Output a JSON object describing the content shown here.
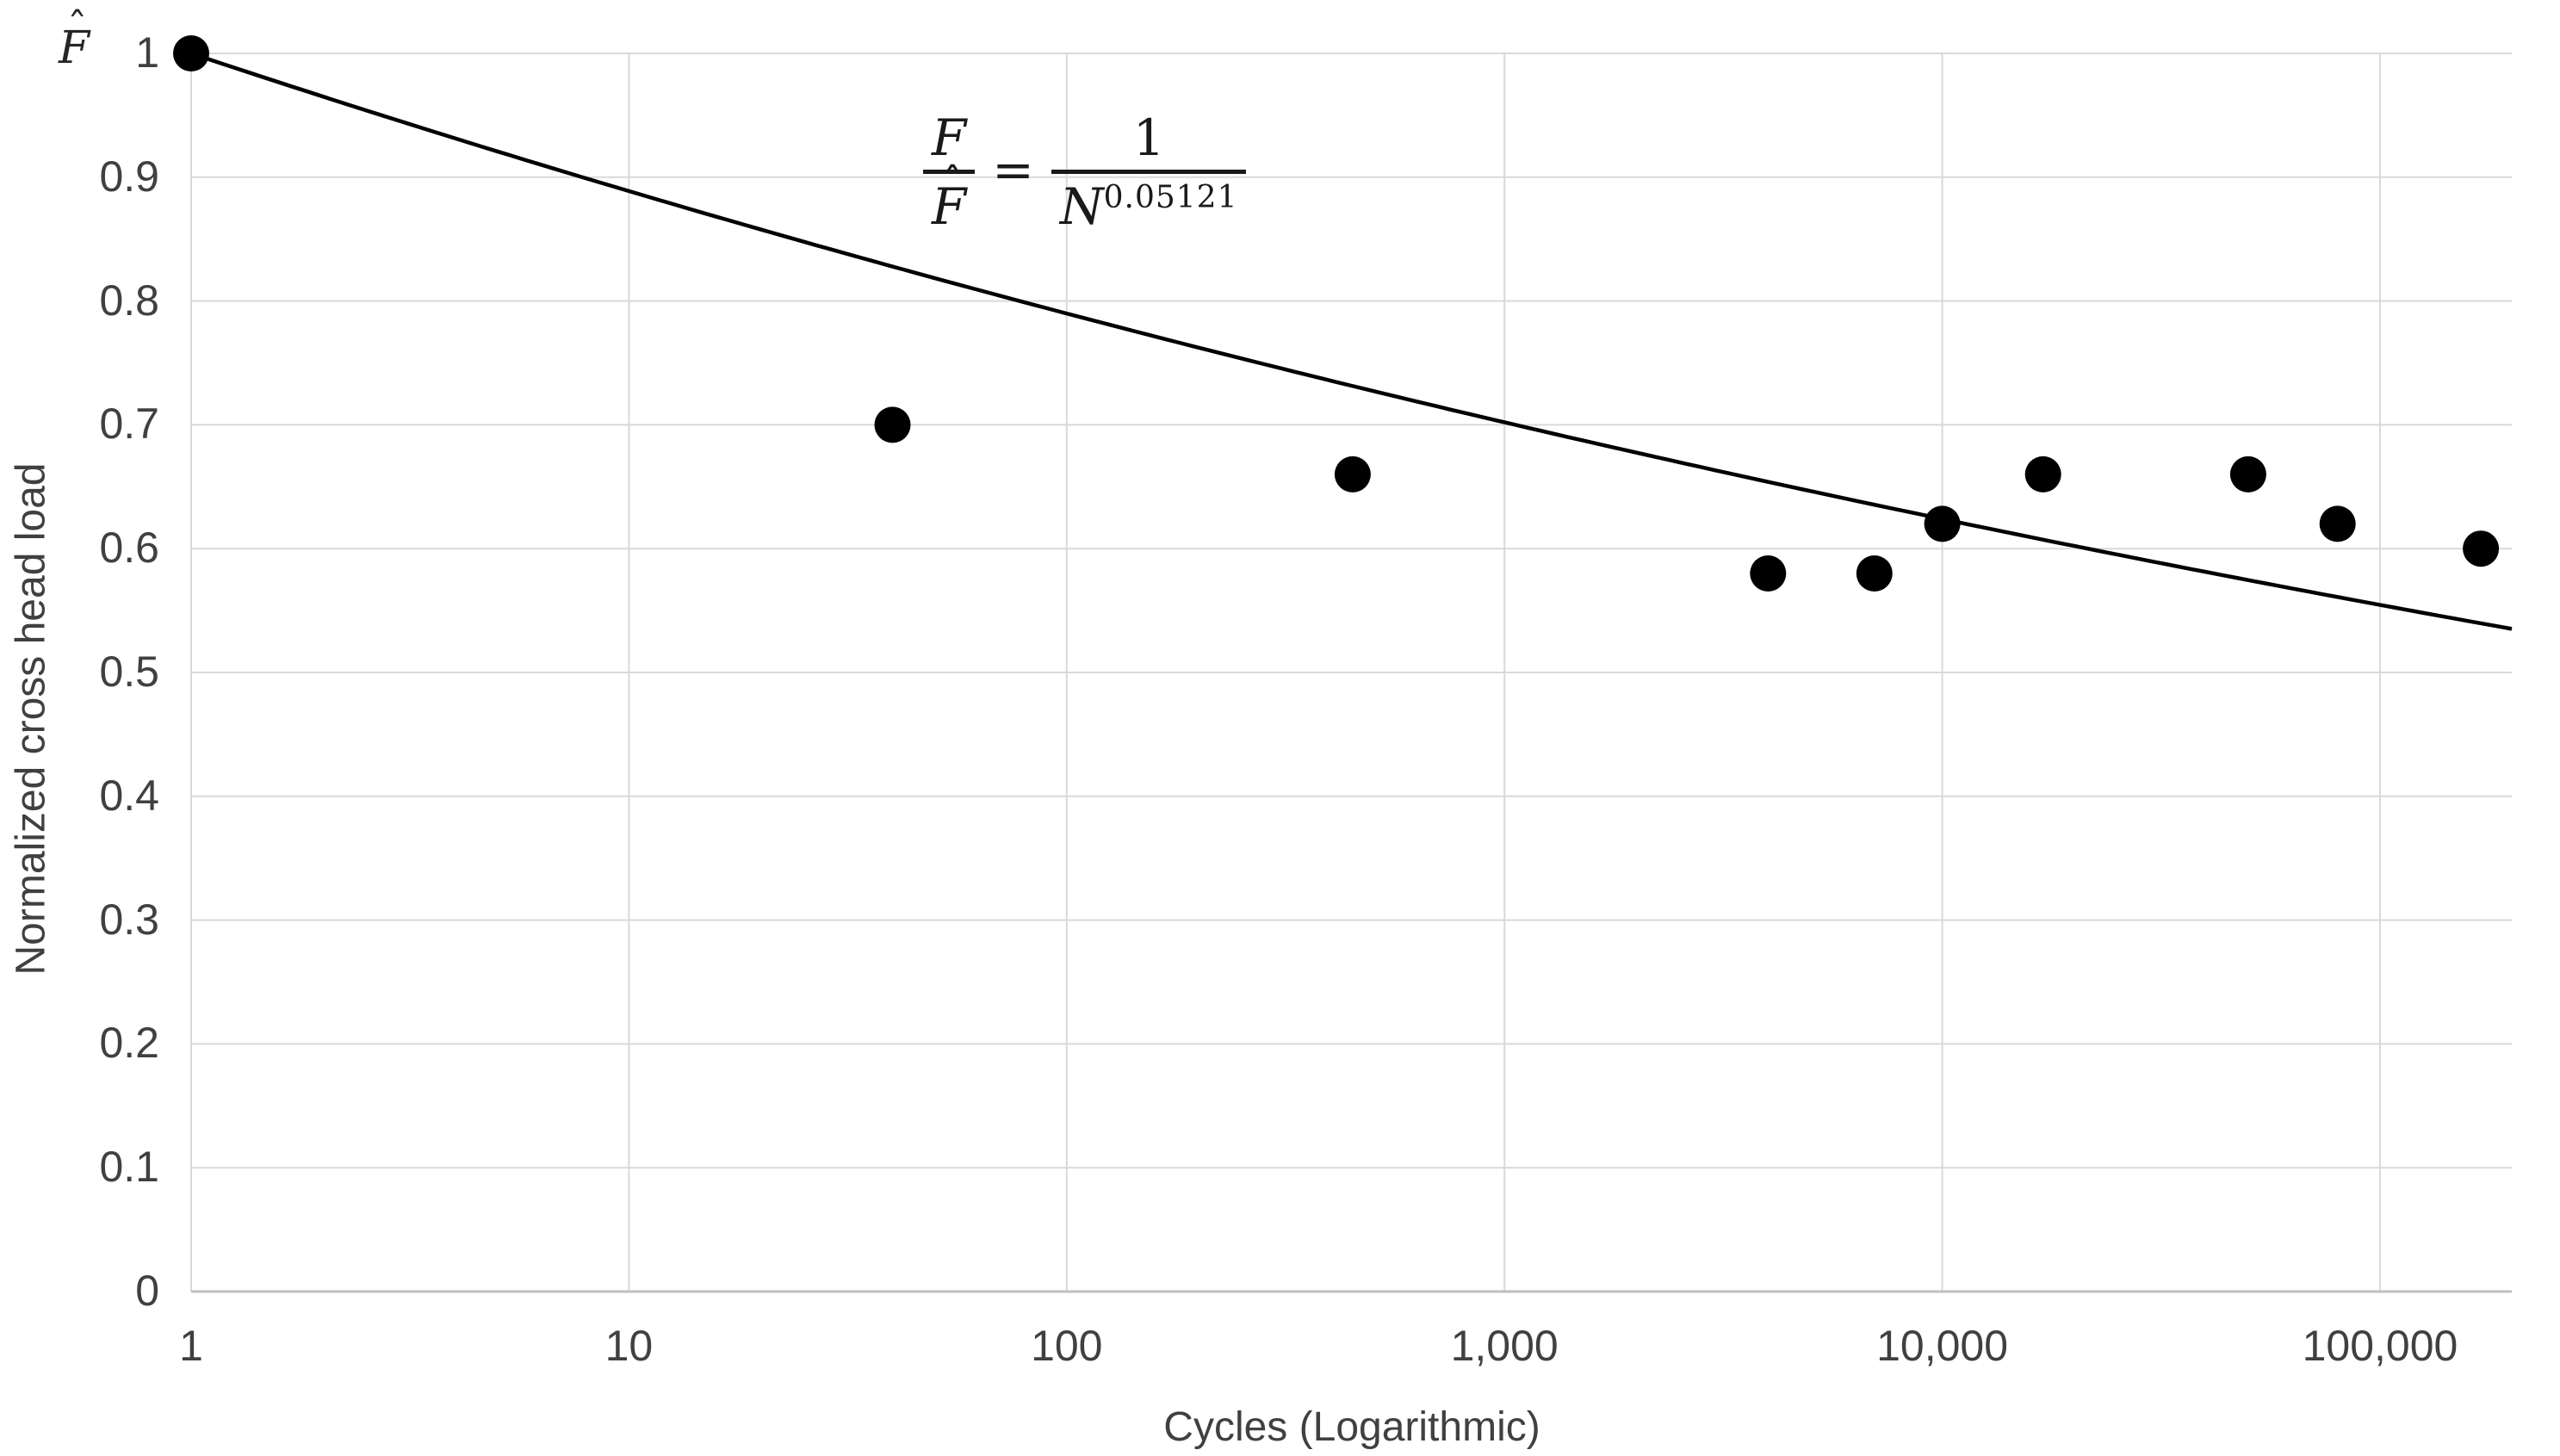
{
  "chart_data": {
    "type": "scatter",
    "title": "",
    "xlabel": "Cycles (Logarithmic)",
    "ylabel": "Normalized cross head load",
    "y_axis_symbol_base": "F",
    "y_axis_symbol_hat": "ˆ",
    "x_scale": "log",
    "y_scale": "linear",
    "x_range": [
      1,
      200000
    ],
    "y_range": [
      0,
      1
    ],
    "grid": true,
    "legend": null,
    "x_ticks": [
      {
        "value": 1,
        "label": "1"
      },
      {
        "value": 10,
        "label": "10"
      },
      {
        "value": 100,
        "label": "100"
      },
      {
        "value": 1000,
        "label": "1,000"
      },
      {
        "value": 10000,
        "label": "10,000"
      },
      {
        "value": 100000,
        "label": "100,000"
      }
    ],
    "y_ticks": [
      {
        "value": 1,
        "label": "1"
      },
      {
        "value": 0.9,
        "label": "0.9"
      },
      {
        "value": 0.8,
        "label": "0.8"
      },
      {
        "value": 0.7,
        "label": "0.7"
      },
      {
        "value": 0.6,
        "label": "0.6"
      },
      {
        "value": 0.5,
        "label": "0.5"
      },
      {
        "value": 0.4,
        "label": "0.4"
      },
      {
        "value": 0.3,
        "label": "0.3"
      },
      {
        "value": 0.2,
        "label": "0.2"
      },
      {
        "value": 0.1,
        "label": "0.1"
      },
      {
        "value": 0,
        "label": "0"
      }
    ],
    "points": [
      {
        "x": 1,
        "y": 1.0
      },
      {
        "x": 40,
        "y": 0.7
      },
      {
        "x": 450,
        "y": 0.66
      },
      {
        "x": 4000,
        "y": 0.58
      },
      {
        "x": 7000,
        "y": 0.58
      },
      {
        "x": 10000,
        "y": 0.62
      },
      {
        "x": 17000,
        "y": 0.66
      },
      {
        "x": 50000,
        "y": 0.66
      },
      {
        "x": 80000,
        "y": 0.62
      },
      {
        "x": 170000,
        "y": 0.6
      }
    ],
    "trendline": {
      "type": "power",
      "formula": "F/F̂ = 1/N^0.05121",
      "exponent": 0.05121
    },
    "equation": {
      "lhs_num": "F",
      "lhs_den_base": "F",
      "lhs_den_hat": "ˆ",
      "equals": "=",
      "rhs_num": "1",
      "rhs_den_base": "N",
      "rhs_exponent": "0.05121"
    },
    "marker": {
      "shape": "circle",
      "radius_px": 21
    },
    "colors": {
      "point": "#000000",
      "curve": "#000000",
      "gridline": "#d9d9d9",
      "axis_line": "#bfbfbf",
      "tick_text": "#404040",
      "title_text": "#404040",
      "equation_text": "#1a1a1a",
      "background": "#ffffff"
    }
  }
}
